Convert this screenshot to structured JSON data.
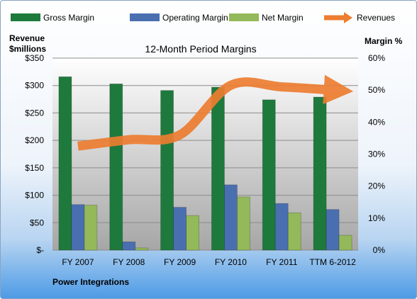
{
  "chart_data": {
    "type": "bar",
    "title": "12-Month Period Margins",
    "company": "Power Integrations",
    "left_axis_title": [
      "Revenue",
      "$millions"
    ],
    "right_axis_title": "Margin %",
    "categories": [
      "FY 2007",
      "FY 2008",
      "FY 2009",
      "FY 2010",
      "FY 2011",
      "TTM 6-2012"
    ],
    "left_ylim": [
      0,
      350
    ],
    "left_ticks": [
      "$-",
      "$50",
      "$100",
      "$150",
      "$200",
      "$250",
      "$300",
      "$350"
    ],
    "right_ylim": [
      0,
      60
    ],
    "right_ticks": [
      "0%",
      "10%",
      "20%",
      "30%",
      "40%",
      "50%",
      "60%"
    ],
    "series": [
      {
        "name": "Gross Margin",
        "axis": "left",
        "color": "#1e7a3c",
        "values": [
          316,
          303,
          291,
          297,
          274,
          279
        ]
      },
      {
        "name": "Operating Margin",
        "axis": "left",
        "color": "#4a6fb0",
        "values": [
          83,
          15,
          78,
          119,
          85,
          74
        ]
      },
      {
        "name": "Net Margin",
        "axis": "left",
        "color": "#93b95a",
        "values": [
          82,
          4,
          63,
          97,
          68,
          27
        ]
      },
      {
        "name": "Revenues",
        "axis": "right",
        "color": "#ed7d31",
        "type": "line",
        "values": [
          32.5,
          34.5,
          36,
          51.5,
          51,
          50
        ]
      }
    ],
    "grid": true,
    "legend": "top"
  }
}
